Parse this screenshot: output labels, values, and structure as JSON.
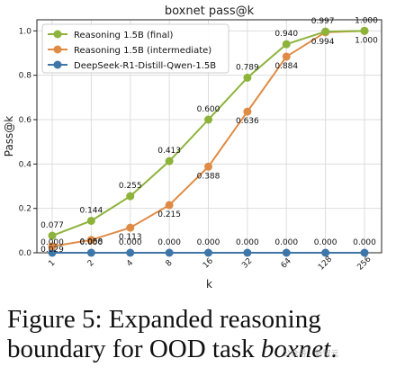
{
  "colors": {
    "final": "#8db33b",
    "intermediate": "#e08b45",
    "distill": "#3f76a8",
    "grid": "#dddddd",
    "axis": "#222222"
  },
  "chart_data": {
    "type": "line",
    "title": "boxnet pass@k",
    "xlabel": "k",
    "ylabel": "Pass@k",
    "ylim": [
      0,
      1.05
    ],
    "yticks": [
      "0.0",
      "0.2",
      "0.4",
      "0.6",
      "0.8",
      "1.0"
    ],
    "categories": [
      "1",
      "2",
      "4",
      "8",
      "16",
      "32",
      "64",
      "128",
      "256"
    ],
    "grid": true,
    "legend_position": "top-left",
    "series": [
      {
        "name": "Reasoning 1.5B (final)",
        "color_key": "final",
        "values": [
          0.077,
          0.144,
          0.255,
          0.413,
          0.6,
          0.789,
          0.94,
          0.997,
          1.0
        ],
        "labels": [
          "0.077",
          "0.144",
          "0.255",
          "0.413",
          "0.600",
          "0.789",
          "0.940",
          "0.997",
          "1.000"
        ]
      },
      {
        "name": "Reasoning 1.5B (intermediate)",
        "color_key": "intermediate",
        "values": [
          0.029,
          0.058,
          0.113,
          0.215,
          0.388,
          0.636,
          0.884,
          0.994,
          1.0
        ],
        "labels": [
          "0.029",
          "0.058",
          "0.113",
          "0.215",
          "0.388",
          "0.636",
          "0.884",
          "0.994",
          "1.000"
        ]
      },
      {
        "name": "DeepSeek-R1-Distill-Qwen-1.5B",
        "color_key": "distill",
        "values": [
          0,
          0,
          0,
          0,
          0,
          0,
          0,
          0,
          0
        ],
        "labels": [
          "0.000",
          "0.000",
          "0.000",
          "0.000",
          "0.000",
          "0.000",
          "0.000",
          "0.000",
          "0.000"
        ]
      }
    ]
  },
  "caption": {
    "line1": "Figure 5:  Expanded reasoning",
    "line2_prefix": "boundary for OOD task ",
    "line2_emph": "boxnet",
    "line2_suffix": "."
  },
  "watermark": "公众号 · 新智元"
}
